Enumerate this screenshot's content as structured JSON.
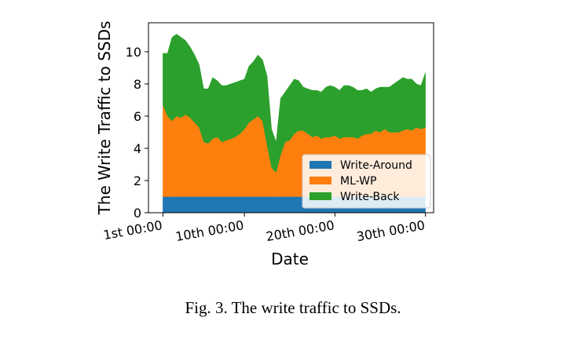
{
  "caption": "Fig. 3.  The write traffic to SSDs.",
  "chart_data": {
    "type": "area",
    "stacked": true,
    "xlabel": "Date",
    "ylabel": "The Write Traffic to SSDs",
    "xticks": [
      {
        "value": 0,
        "label": "1st 00:00"
      },
      {
        "value": 9,
        "label": "10th 00:00"
      },
      {
        "value": 19,
        "label": "20th 00:00"
      },
      {
        "value": 29,
        "label": "30th 00:00"
      }
    ],
    "yticks": [
      0,
      2,
      4,
      6,
      8,
      10
    ],
    "xlim": [
      -1.6,
      29.9
    ],
    "ylim": [
      0,
      11.8
    ],
    "grid": false,
    "legend": "lower right",
    "x": [
      0,
      0.5,
      1,
      1.5,
      2,
      2.5,
      3,
      3.5,
      4,
      4.5,
      5,
      5.5,
      6,
      6.5,
      7,
      7.5,
      8,
      8.5,
      9,
      9.5,
      10,
      10.5,
      11,
      11.5,
      12,
      12.5,
      13,
      13.5,
      14,
      14.5,
      15,
      15.5,
      16,
      16.5,
      17,
      17.5,
      18,
      18.5,
      19,
      19.5,
      20,
      20.5,
      21,
      21.5,
      22,
      22.5,
      23,
      23.5,
      24,
      24.5,
      25,
      25.5,
      26,
      26.5,
      27,
      27.5,
      28,
      28.5,
      29
    ],
    "series": [
      {
        "name": "Write-Around",
        "color": "#1f77b4",
        "values": [
          1.0,
          1.0,
          1.0,
          1.0,
          1.0,
          1.0,
          1.0,
          1.0,
          1.0,
          1.0,
          1.0,
          1.0,
          1.0,
          1.0,
          1.0,
          1.0,
          1.0,
          1.0,
          1.0,
          1.0,
          1.0,
          1.0,
          1.0,
          1.0,
          1.0,
          1.0,
          1.0,
          1.0,
          1.0,
          1.0,
          1.0,
          1.0,
          1.0,
          1.0,
          1.0,
          1.0,
          1.0,
          1.0,
          1.0,
          1.0,
          1.0,
          1.0,
          1.0,
          1.0,
          1.0,
          1.0,
          1.0,
          1.0,
          1.0,
          1.0,
          1.0,
          1.0,
          1.0,
          1.0,
          1.0,
          1.0,
          1.0,
          1.0,
          1.0
        ]
      },
      {
        "name": "ML-WP",
        "color": "#ff7f0e",
        "values": [
          5.7,
          5.0,
          4.7,
          5.0,
          4.9,
          5.1,
          4.9,
          4.6,
          4.3,
          3.4,
          3.3,
          3.6,
          3.7,
          3.4,
          3.5,
          3.6,
          3.7,
          3.9,
          4.2,
          4.6,
          4.8,
          5.0,
          4.7,
          3.2,
          1.8,
          1.5,
          2.6,
          3.4,
          3.5,
          3.9,
          4.1,
          4.1,
          3.9,
          3.7,
          3.8,
          3.6,
          3.7,
          3.7,
          3.8,
          3.6,
          3.7,
          3.7,
          3.7,
          3.6,
          3.8,
          3.9,
          3.9,
          4.1,
          4.0,
          4.2,
          4.0,
          4.0,
          4.0,
          4.1,
          4.2,
          4.1,
          4.3,
          4.2,
          4.3
        ]
      },
      {
        "name": "Write-Back",
        "color": "#2ca02c",
        "values": [
          3.2,
          3.9,
          5.2,
          5.1,
          5.0,
          4.6,
          4.4,
          4.2,
          3.9,
          3.3,
          3.4,
          3.8,
          3.5,
          3.5,
          3.4,
          3.4,
          3.4,
          3.3,
          3.1,
          3.5,
          3.6,
          3.8,
          3.8,
          4.3,
          2.4,
          1.9,
          3.5,
          3.1,
          3.4,
          3.4,
          3.1,
          2.7,
          2.8,
          2.9,
          2.8,
          2.9,
          3.1,
          3.2,
          3.0,
          3.0,
          3.2,
          3.2,
          3.1,
          3.0,
          2.8,
          2.8,
          2.6,
          2.6,
          2.8,
          2.6,
          2.8,
          3.0,
          3.2,
          3.3,
          3.1,
          3.2,
          2.7,
          2.7,
          3.4
        ]
      }
    ]
  }
}
